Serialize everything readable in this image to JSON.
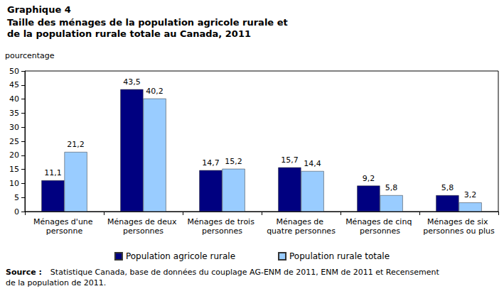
{
  "chart_data": {
    "type": "bar",
    "title": "Graphique 4",
    "subtitle": "Taille des ménages de la population agricole rurale et de la population rurale totale au Canada, 2011",
    "y_label": "pourcentage",
    "source": "Source : Statistique Canada, base de données du couplage AG-ENM de 2011, ENM de 2011 et Recensement de la population de 2011.",
    "categories": [
      "Ménages d'une personne",
      "Ménages de deux personnes",
      "Ménages de trois personnes",
      "Ménages de quatre personnes",
      "Ménages de cinq personnes",
      "Ménages de six personnes ou plus"
    ],
    "series": [
      {
        "name": "Population agricole rurale",
        "color": "#000080",
        "values": [
          11.1,
          43.5,
          14.7,
          15.7,
          9.2,
          5.8
        ],
        "value_labels": [
          "11,1",
          "43,5",
          "14,7",
          "15,7",
          "9,2",
          "5,8"
        ]
      },
      {
        "name": "Population rurale totale",
        "color": "#99ccff",
        "values": [
          21.2,
          40.2,
          15.2,
          14.4,
          5.8,
          3.2
        ],
        "value_labels": [
          "21,2",
          "40,2",
          "15,2",
          "14,4",
          "5,8",
          "3,2"
        ]
      }
    ],
    "ylim": [
      0,
      50
    ],
    "yticks": [
      0,
      5,
      10,
      15,
      20,
      25,
      30,
      35,
      40,
      45,
      50
    ],
    "grid": false,
    "legend": "bottom",
    "data_labels": true
  }
}
